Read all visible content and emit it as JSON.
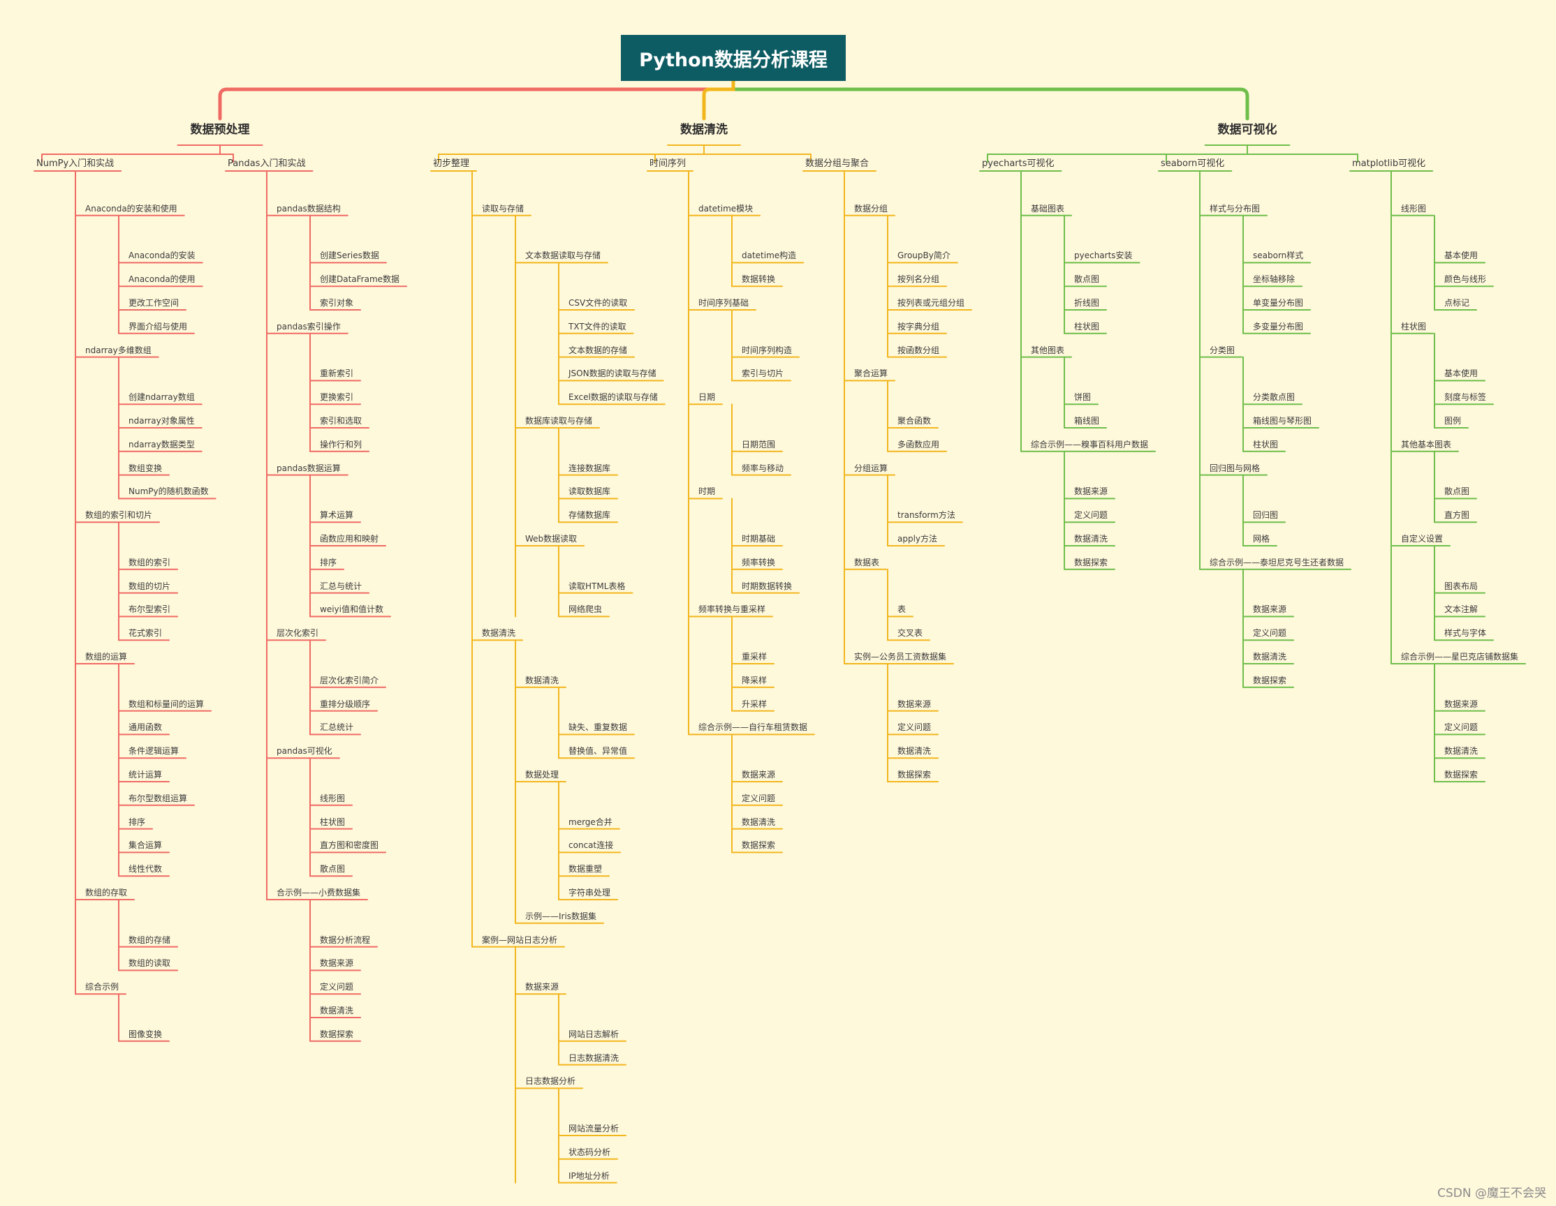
{
  "title": "Python数据分析课程",
  "watermark": "CSDN @魔王不会哭",
  "colors": {
    "background": "#FFF9DC",
    "root": "#0E5C63",
    "branch1": "#EF6A63",
    "branch2": "#F2B61D",
    "branch3": "#6EBE4A"
  },
  "branches": [
    {
      "label": "数据预处理",
      "children": [
        {
          "label": "NumPy入门和实战",
          "children": [
            {
              "label": "Anaconda的安装和使用",
              "children": [
                {
                  "label": "Anaconda的安装"
                },
                {
                  "label": "Anaconda的使用"
                },
                {
                  "label": "更改工作空间"
                },
                {
                  "label": "界面介绍与使用"
                }
              ]
            },
            {
              "label": "ndarray多维数组",
              "children": [
                {
                  "label": "创建ndarray数组"
                },
                {
                  "label": "ndarray对象属性"
                },
                {
                  "label": "ndarray数据类型"
                },
                {
                  "label": "数组变换"
                },
                {
                  "label": "NumPy的随机数函数"
                }
              ]
            },
            {
              "label": "数组的索引和切片",
              "children": [
                {
                  "label": "数组的索引"
                },
                {
                  "label": "数组的切片"
                },
                {
                  "label": "布尔型索引"
                },
                {
                  "label": "花式索引"
                }
              ]
            },
            {
              "label": "数组的运算",
              "children": [
                {
                  "label": "数组和标量间的运算"
                },
                {
                  "label": "通用函数"
                },
                {
                  "label": "条件逻辑运算"
                },
                {
                  "label": "统计运算"
                },
                {
                  "label": "布尔型数组运算"
                },
                {
                  "label": "排序"
                },
                {
                  "label": "集合运算"
                },
                {
                  "label": "线性代数"
                }
              ]
            },
            {
              "label": "数组的存取",
              "children": [
                {
                  "label": "数组的存储"
                },
                {
                  "label": "数组的读取"
                }
              ]
            },
            {
              "label": "综合示例",
              "children": [
                {
                  "label": "图像变换"
                }
              ]
            }
          ]
        },
        {
          "label": "Pandas入门和实战",
          "children": [
            {
              "label": "pandas数据结构",
              "children": [
                {
                  "label": "创建Series数据"
                },
                {
                  "label": "创建DataFrame数据"
                },
                {
                  "label": "索引对象"
                }
              ]
            },
            {
              "label": "pandas索引操作",
              "children": [
                {
                  "label": "重新索引"
                },
                {
                  "label": "更换索引"
                },
                {
                  "label": "索引和选取"
                },
                {
                  "label": "操作行和列"
                }
              ]
            },
            {
              "label": "pandas数据运算",
              "children": [
                {
                  "label": "算术运算"
                },
                {
                  "label": "函数应用和映射"
                },
                {
                  "label": "排序"
                },
                {
                  "label": "汇总与统计"
                },
                {
                  "label": "weiyi值和值计数"
                }
              ]
            },
            {
              "label": "层次化索引",
              "children": [
                {
                  "label": "层次化索引简介"
                },
                {
                  "label": "重排分级顺序"
                },
                {
                  "label": "汇总统计"
                }
              ]
            },
            {
              "label": "pandas可视化",
              "children": [
                {
                  "label": "线形图"
                },
                {
                  "label": "柱状图"
                },
                {
                  "label": "直方图和密度图"
                },
                {
                  "label": "散点图"
                }
              ]
            },
            {
              "label": "合示例——小费数据集",
              "children": [
                {
                  "label": "数据分析流程"
                },
                {
                  "label": "数据来源"
                },
                {
                  "label": "定义问题"
                },
                {
                  "label": "数据清洗"
                },
                {
                  "label": "数据探索"
                }
              ]
            }
          ]
        }
      ]
    },
    {
      "label": "数据清洗",
      "children": [
        {
          "label": "初步整理",
          "children": [
            {
              "label": "读取与存储",
              "children": [
                {
                  "label": "文本数据读取与存储",
                  "children": [
                    {
                      "label": "CSV文件的读取"
                    },
                    {
                      "label": "TXT文件的读取"
                    },
                    {
                      "label": "文本数据的存储"
                    },
                    {
                      "label": "JSON数据的读取与存储"
                    },
                    {
                      "label": "Excel数据的读取与存储"
                    }
                  ]
                },
                {
                  "label": "数据库读取与存储",
                  "children": [
                    {
                      "label": "连接数据库"
                    },
                    {
                      "label": "读取数据库"
                    },
                    {
                      "label": "存储数据库"
                    }
                  ]
                },
                {
                  "label": "Web数据读取",
                  "children": [
                    {
                      "label": "读取HTML表格"
                    },
                    {
                      "label": "网络爬虫"
                    }
                  ]
                }
              ]
            },
            {
              "label": "数据清洗",
              "children": [
                {
                  "label": "数据清洗",
                  "children": [
                    {
                      "label": "缺失、重复数据"
                    },
                    {
                      "label": "替换值、异常值"
                    }
                  ]
                },
                {
                  "label": "数据处理",
                  "children": [
                    {
                      "label": "merge合并"
                    },
                    {
                      "label": "concat连接"
                    },
                    {
                      "label": "数据重塑"
                    },
                    {
                      "label": "字符串处理"
                    }
                  ]
                },
                {
                  "label": "示例——Iris数据集"
                }
              ]
            },
            {
              "label": "案例—网站日志分析",
              "children": [
                {
                  "label": "数据来源",
                  "children": [
                    {
                      "label": "网站日志解析"
                    },
                    {
                      "label": "日志数据清洗"
                    }
                  ]
                },
                {
                  "label": "日志数据分析",
                  "children": [
                    {
                      "label": "网站流量分析"
                    },
                    {
                      "label": "状态码分析"
                    },
                    {
                      "label": "IP地址分析"
                    }
                  ]
                }
              ]
            }
          ]
        },
        {
          "label": "时间序列",
          "children": [
            {
              "label": "datetime模块",
              "children": [
                {
                  "label": "datetime构造"
                },
                {
                  "label": "数据转换"
                }
              ]
            },
            {
              "label": "时间序列基础",
              "children": [
                {
                  "label": "时间序列构造"
                },
                {
                  "label": "索引与切片"
                }
              ]
            },
            {
              "label": "日期",
              "children": [
                {
                  "label": "日期范围"
                },
                {
                  "label": "频率与移动"
                }
              ]
            },
            {
              "label": "时期",
              "children": [
                {
                  "label": "时期基础"
                },
                {
                  "label": "频率转换"
                },
                {
                  "label": "时期数据转换"
                }
              ]
            },
            {
              "label": "频率转换与重采样",
              "children": [
                {
                  "label": "重采样"
                },
                {
                  "label": "降采样"
                },
                {
                  "label": "升采样"
                }
              ]
            },
            {
              "label": "综合示例——自行车租赁数据",
              "children": [
                {
                  "label": "数据来源"
                },
                {
                  "label": "定义问题"
                },
                {
                  "label": "数据清洗"
                },
                {
                  "label": "数据探索"
                }
              ]
            }
          ]
        },
        {
          "label": "数据分组与聚合",
          "children": [
            {
              "label": "数据分组",
              "children": [
                {
                  "label": "GroupBy简介"
                },
                {
                  "label": "按列名分组"
                },
                {
                  "label": "按列表或元组分组"
                },
                {
                  "label": "按字典分组"
                },
                {
                  "label": "按函数分组"
                }
              ]
            },
            {
              "label": "聚合运算",
              "children": [
                {
                  "label": "聚合函数"
                },
                {
                  "label": "多函数应用"
                }
              ]
            },
            {
              "label": "分组运算",
              "children": [
                {
                  "label": "transform方法"
                },
                {
                  "label": "apply方法"
                }
              ]
            },
            {
              "label": "数据表",
              "children": [
                {
                  "label": "表"
                },
                {
                  "label": "交叉表"
                }
              ]
            },
            {
              "label": "实例—公务员工资数据集",
              "children": [
                {
                  "label": "数据来源"
                },
                {
                  "label": "定义问题"
                },
                {
                  "label": "数据清洗"
                },
                {
                  "label": "数据探索"
                }
              ]
            }
          ]
        }
      ]
    },
    {
      "label": "数据可视化",
      "children": [
        {
          "label": "pyecharts可视化",
          "children": [
            {
              "label": "基础图表",
              "children": [
                {
                  "label": "pyecharts安装"
                },
                {
                  "label": "散点图"
                },
                {
                  "label": "折线图"
                },
                {
                  "label": "柱状图"
                }
              ]
            },
            {
              "label": "其他图表",
              "children": [
                {
                  "label": "饼图"
                },
                {
                  "label": "箱线图"
                }
              ]
            },
            {
              "label": "综合示例——糗事百科用户数据",
              "children": [
                {
                  "label": "数据来源"
                },
                {
                  "label": "定义问题"
                },
                {
                  "label": "数据清洗"
                },
                {
                  "label": "数据探索"
                }
              ]
            }
          ]
        },
        {
          "label": "seaborn可视化",
          "children": [
            {
              "label": "样式与分布图",
              "children": [
                {
                  "label": "seaborn样式"
                },
                {
                  "label": "坐标轴移除"
                },
                {
                  "label": "单变量分布图"
                },
                {
                  "label": "多变量分布图"
                }
              ]
            },
            {
              "label": "分类图",
              "children": [
                {
                  "label": "分类散点图"
                },
                {
                  "label": "箱线图与琴形图"
                },
                {
                  "label": "柱状图"
                }
              ]
            },
            {
              "label": "回归图与网格",
              "children": [
                {
                  "label": "回归图"
                },
                {
                  "label": "网格"
                }
              ]
            },
            {
              "label": "综合示例——泰坦尼克号生还者数据",
              "children": [
                {
                  "label": "数据来源"
                },
                {
                  "label": "定义问题"
                },
                {
                  "label": "数据清洗"
                },
                {
                  "label": "数据探索"
                }
              ]
            }
          ]
        },
        {
          "label": "matplotlib可视化",
          "children": [
            {
              "label": "线形图",
              "children": [
                {
                  "label": "基本使用"
                },
                {
                  "label": "颜色与线形"
                },
                {
                  "label": "点标记"
                }
              ]
            },
            {
              "label": "柱状图",
              "children": [
                {
                  "label": "基本使用"
                },
                {
                  "label": "刻度与标签"
                },
                {
                  "label": "图例"
                }
              ]
            },
            {
              "label": "其他基本图表",
              "children": [
                {
                  "label": "散点图"
                },
                {
                  "label": "直方图"
                }
              ]
            },
            {
              "label": "自定义设置",
              "children": [
                {
                  "label": "图表布局"
                },
                {
                  "label": "文本注解"
                },
                {
                  "label": "样式与字体"
                }
              ]
            },
            {
              "label": "综合示例——星巴克店铺数据集",
              "children": [
                {
                  "label": "数据来源"
                },
                {
                  "label": "定义问题"
                },
                {
                  "label": "数据清洗"
                },
                {
                  "label": "数据探索"
                }
              ]
            }
          ]
        }
      ]
    }
  ]
}
